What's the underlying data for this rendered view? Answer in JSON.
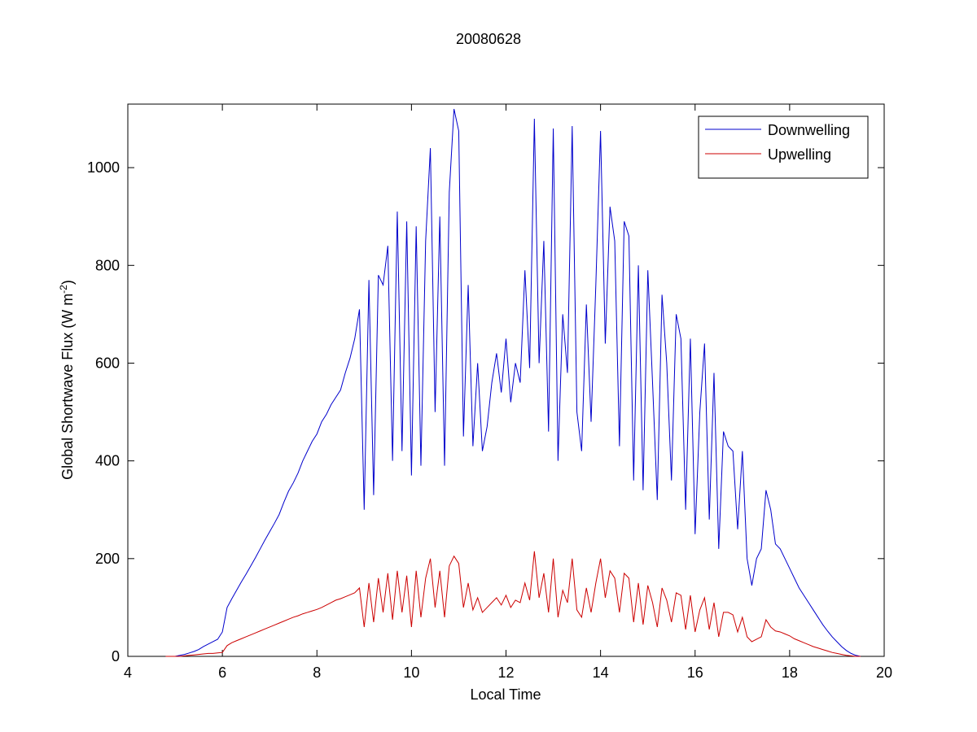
{
  "chart_data": {
    "type": "line",
    "title": "20080628",
    "xlabel": "Local Time",
    "ylabel": "Global Shortwave Flux (W m",
    "ylabel_superscript": "-2",
    "ylabel_end": ")",
    "xlim": [
      4,
      20
    ],
    "xticks": [
      4,
      6,
      8,
      10,
      12,
      14,
      16,
      18,
      20
    ],
    "ylim": [
      0,
      1130
    ],
    "yticks": [
      0,
      200,
      400,
      600,
      800,
      1000
    ],
    "grid": false,
    "legend": "northeast",
    "x": [
      4.8,
      4.9,
      5.0,
      5.1,
      5.2,
      5.3,
      5.4,
      5.5,
      5.6,
      5.7,
      5.8,
      5.9,
      6.0,
      6.1,
      6.2,
      6.3,
      6.4,
      6.5,
      6.6,
      6.7,
      6.8,
      6.9,
      7.0,
      7.1,
      7.2,
      7.3,
      7.4,
      7.5,
      7.6,
      7.7,
      7.8,
      7.9,
      8.0,
      8.1,
      8.2,
      8.3,
      8.4,
      8.5,
      8.6,
      8.7,
      8.8,
      8.9,
      9.0,
      9.1,
      9.2,
      9.3,
      9.4,
      9.5,
      9.6,
      9.7,
      9.8,
      9.9,
      10.0,
      10.1,
      10.2,
      10.3,
      10.4,
      10.5,
      10.6,
      10.7,
      10.8,
      10.9,
      11.0,
      11.1,
      11.2,
      11.3,
      11.4,
      11.5,
      11.6,
      11.7,
      11.8,
      11.9,
      12.0,
      12.1,
      12.2,
      12.3,
      12.4,
      12.5,
      12.6,
      12.7,
      12.8,
      12.9,
      13.0,
      13.1,
      13.2,
      13.3,
      13.4,
      13.5,
      13.6,
      13.7,
      13.8,
      13.9,
      14.0,
      14.1,
      14.2,
      14.3,
      14.4,
      14.5,
      14.6,
      14.7,
      14.8,
      14.9,
      15.0,
      15.1,
      15.2,
      15.3,
      15.4,
      15.5,
      15.6,
      15.7,
      15.8,
      15.9,
      16.0,
      16.1,
      16.2,
      16.3,
      16.4,
      16.5,
      16.6,
      16.7,
      16.8,
      16.9,
      17.0,
      17.1,
      17.2,
      17.3,
      17.4,
      17.5,
      17.6,
      17.7,
      17.8,
      17.9,
      18.0,
      18.1,
      18.2,
      18.3,
      18.4,
      18.5,
      18.6,
      18.7,
      18.8,
      18.9,
      19.0,
      19.1,
      19.2,
      19.3,
      19.4,
      19.5
    ],
    "series": [
      {
        "name": "Downwelling",
        "color": "#0000cc",
        "values": [
          0,
          0,
          0,
          2,
          4,
          7,
          10,
          14,
          20,
          25,
          30,
          35,
          50,
          100,
          118,
          135,
          152,
          168,
          185,
          202,
          220,
          238,
          255,
          272,
          290,
          315,
          338,
          355,
          375,
          400,
          420,
          440,
          455,
          480,
          495,
          515,
          530,
          545,
          580,
          610,
          650,
          710,
          300,
          770,
          330,
          780,
          760,
          840,
          400,
          910,
          420,
          890,
          370,
          880,
          390,
          850,
          1040,
          500,
          900,
          390,
          950,
          1120,
          1075,
          450,
          760,
          430,
          600,
          420,
          470,
          560,
          620,
          540,
          650,
          520,
          600,
          560,
          790,
          590,
          1100,
          600,
          850,
          460,
          1080,
          400,
          700,
          580,
          1085,
          500,
          420,
          720,
          480,
          760,
          1075,
          640,
          920,
          850,
          430,
          890,
          860,
          360,
          800,
          340,
          790,
          560,
          320,
          740,
          600,
          360,
          700,
          650,
          300,
          650,
          250,
          500,
          640,
          280,
          580,
          220,
          460,
          430,
          420,
          260,
          420,
          200,
          145,
          200,
          220,
          340,
          300,
          230,
          220,
          200,
          180,
          160,
          140,
          125,
          110,
          95,
          80,
          65,
          52,
          40,
          30,
          20,
          12,
          6,
          2,
          0
        ]
      },
      {
        "name": "Upwelling",
        "color": "#cc0000",
        "values": [
          0,
          0,
          0,
          0,
          1,
          2,
          3,
          4,
          5,
          6,
          6,
          7,
          8,
          22,
          28,
          32,
          36,
          40,
          44,
          48,
          52,
          56,
          60,
          64,
          68,
          72,
          76,
          80,
          83,
          87,
          90,
          93,
          96,
          100,
          105,
          110,
          115,
          118,
          122,
          126,
          130,
          140,
          60,
          150,
          70,
          160,
          90,
          170,
          75,
          175,
          90,
          165,
          60,
          175,
          80,
          160,
          200,
          100,
          175,
          80,
          185,
          205,
          190,
          100,
          150,
          95,
          120,
          90,
          100,
          110,
          120,
          105,
          125,
          100,
          115,
          110,
          150,
          115,
          215,
          120,
          170,
          90,
          200,
          80,
          135,
          110,
          200,
          95,
          80,
          140,
          90,
          150,
          200,
          120,
          175,
          160,
          90,
          170,
          160,
          70,
          150,
          65,
          145,
          110,
          60,
          140,
          115,
          70,
          130,
          125,
          55,
          125,
          50,
          95,
          120,
          55,
          110,
          40,
          90,
          90,
          85,
          50,
          80,
          40,
          30,
          35,
          40,
          75,
          60,
          52,
          50,
          46,
          42,
          36,
          32,
          28,
          24,
          20,
          17,
          14,
          11,
          8,
          6,
          4,
          2,
          1,
          0,
          0
        ]
      }
    ]
  }
}
